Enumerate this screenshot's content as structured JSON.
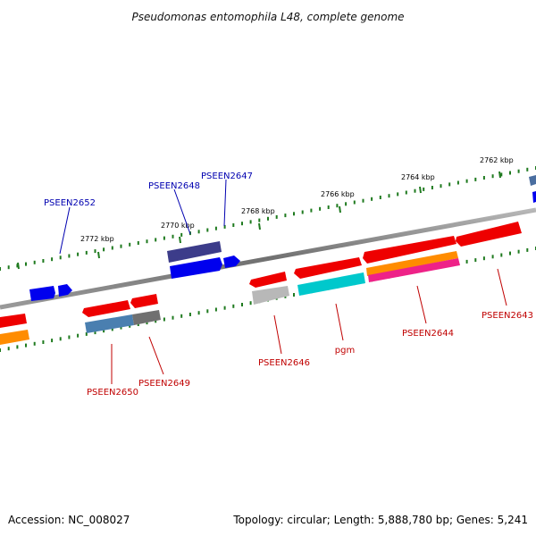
{
  "title": "Pseudomonas entomophila L48, complete genome",
  "accession": "Accession: NC_008027",
  "topology": "Topology: circular; Length: 5,888,780 bp; Genes: 5,241",
  "colors": {
    "backbone": "#808080",
    "tick": "#1f7a1f",
    "label_forward": "#0000b0",
    "label_reverse": "#c00000"
  },
  "ticks": [
    {
      "label": "2762 kbp"
    },
    {
      "label": "2764 kbp"
    },
    {
      "label": "2766 kbp"
    },
    {
      "label": "2768 kbp"
    },
    {
      "label": "2770 kbp"
    },
    {
      "label": "2772 kbp"
    }
  ],
  "genes": [
    {
      "name": "PSEEN2643",
      "strand": "reverse"
    },
    {
      "name": "PSEEN2644",
      "strand": "reverse"
    },
    {
      "name": "pgm",
      "strand": "reverse"
    },
    {
      "name": "PSEEN2646",
      "strand": "reverse"
    },
    {
      "name": "PSEEN2647",
      "strand": "forward"
    },
    {
      "name": "PSEEN2648",
      "strand": "forward"
    },
    {
      "name": "PSEEN2649",
      "strand": "reverse"
    },
    {
      "name": "PSEEN2650",
      "strand": "reverse"
    },
    {
      "name": "PSEEN2652",
      "strand": "forward"
    }
  ]
}
